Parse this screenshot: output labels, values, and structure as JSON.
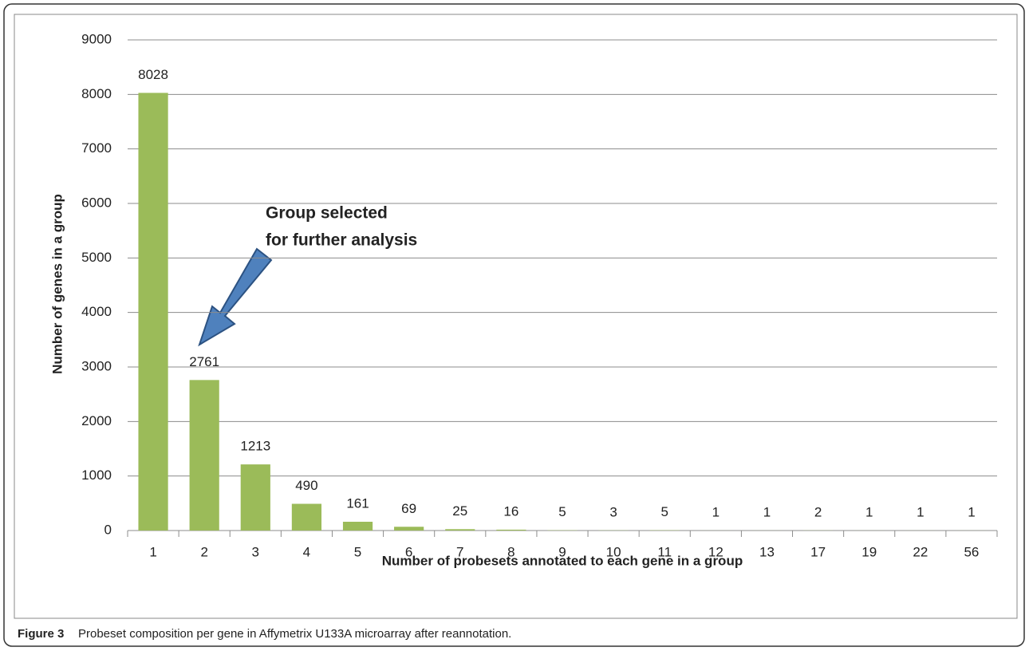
{
  "chart_data": {
    "type": "bar",
    "xlabel": "Number of probesets annotated to each gene in a group",
    "ylabel": "Number of genes in a group",
    "categories": [
      "1",
      "2",
      "3",
      "4",
      "5",
      "6",
      "7",
      "8",
      "9",
      "10",
      "11",
      "12",
      "13",
      "17",
      "19",
      "22",
      "56"
    ],
    "values": [
      8028,
      2761,
      1213,
      490,
      161,
      69,
      25,
      16,
      5,
      3,
      5,
      1,
      1,
      2,
      1,
      1,
      1
    ],
    "color": "#9bbb59",
    "ylim": [
      0,
      9000
    ],
    "yticks": [
      0,
      1000,
      2000,
      3000,
      4000,
      5000,
      6000,
      7000,
      8000,
      9000
    ],
    "grid": true,
    "annotation": [
      "Group selected",
      "for further analysis"
    ]
  },
  "caption": {
    "label": "Figure 3",
    "text": "Probeset composition per gene in Affymetrix U133A microarray after reannotation."
  }
}
